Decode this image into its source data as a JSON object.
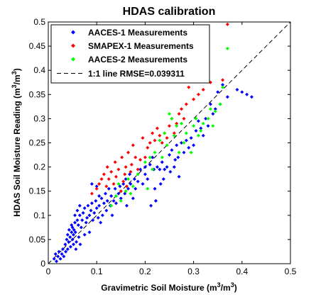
{
  "chart_data": {
    "type": "scatter",
    "title": "HDAS calibration",
    "xlabel": {
      "main": "Gravimetric Soil Moisture (m",
      "sup1": "3",
      "mid": "/m",
      "sup2": "3",
      "end": ")"
    },
    "ylabel": {
      "main": "HDAS Soil Moisture Reading (m",
      "sup1": "3",
      "mid": "/m",
      "sup2": "3",
      "end": ")"
    },
    "xlim": [
      0,
      0.5
    ],
    "ylim": [
      0,
      0.5
    ],
    "xticks": [
      "0",
      "0.1",
      "0.2",
      "0.3",
      "0.4",
      "0.5"
    ],
    "yticks": [
      "0",
      "0.05",
      "0.1",
      "0.15",
      "0.2",
      "0.25",
      "0.3",
      "0.35",
      "0.4",
      "0.45",
      "0.5"
    ],
    "grid": false,
    "legend_position": "top-left",
    "series": [
      {
        "name": "AACES-1 Measurements",
        "color": "#0000ff",
        "marker": "diamond",
        "points": [
          [
            0.012,
            0.01
          ],
          [
            0.015,
            0.02
          ],
          [
            0.017,
            0.005
          ],
          [
            0.02,
            0.015
          ],
          [
            0.022,
            0.025
          ],
          [
            0.025,
            0.01
          ],
          [
            0.028,
            0.02
          ],
          [
            0.03,
            0.03
          ],
          [
            0.032,
            0.015
          ],
          [
            0.035,
            0.04
          ],
          [
            0.036,
            0.025
          ],
          [
            0.038,
            0.05
          ],
          [
            0.04,
            0.03
          ],
          [
            0.04,
            0.06
          ],
          [
            0.042,
            0.045
          ],
          [
            0.043,
            0.07
          ],
          [
            0.045,
            0.055
          ],
          [
            0.046,
            0.035
          ],
          [
            0.048,
            0.065
          ],
          [
            0.048,
            0.08
          ],
          [
            0.05,
            0.05
          ],
          [
            0.05,
            0.075
          ],
          [
            0.052,
            0.04
          ],
          [
            0.052,
            0.06
          ],
          [
            0.053,
            0.07
          ],
          [
            0.055,
            0.085
          ],
          [
            0.055,
            0.1
          ],
          [
            0.056,
            0.065
          ],
          [
            0.057,
            0.03
          ],
          [
            0.058,
            0.045
          ],
          [
            0.06,
            0.09
          ],
          [
            0.06,
            0.11
          ],
          [
            0.062,
            0.08
          ],
          [
            0.063,
            0.055
          ],
          [
            0.065,
            0.1
          ],
          [
            0.065,
            0.12
          ],
          [
            0.066,
            0.04
          ],
          [
            0.068,
            0.075
          ],
          [
            0.07,
            0.09
          ],
          [
            0.072,
            0.105
          ],
          [
            0.075,
            0.115
          ],
          [
            0.075,
            0.06
          ],
          [
            0.078,
            0.085
          ],
          [
            0.08,
            0.095
          ],
          [
            0.082,
            0.12
          ],
          [
            0.085,
            0.1
          ],
          [
            0.085,
            0.065
          ],
          [
            0.088,
            0.11
          ],
          [
            0.09,
            0.125
          ],
          [
            0.09,
            0.165
          ],
          [
            0.092,
            0.09
          ],
          [
            0.095,
            0.105
          ],
          [
            0.098,
            0.13
          ],
          [
            0.1,
            0.115
          ],
          [
            0.1,
            0.16
          ],
          [
            0.103,
            0.095
          ],
          [
            0.105,
            0.12
          ],
          [
            0.105,
            0.14
          ],
          [
            0.108,
            0.085
          ],
          [
            0.11,
            0.135
          ],
          [
            0.112,
            0.1
          ],
          [
            0.115,
            0.125
          ],
          [
            0.118,
            0.145
          ],
          [
            0.12,
            0.11
          ],
          [
            0.122,
            0.13
          ],
          [
            0.125,
            0.155
          ],
          [
            0.128,
            0.12
          ],
          [
            0.13,
            0.14
          ],
          [
            0.132,
            0.1
          ],
          [
            0.135,
            0.13
          ],
          [
            0.138,
            0.155
          ],
          [
            0.14,
            0.125
          ],
          [
            0.145,
            0.145
          ],
          [
            0.148,
            0.16
          ],
          [
            0.15,
            0.135
          ],
          [
            0.155,
            0.165
          ],
          [
            0.158,
            0.145
          ],
          [
            0.16,
            0.175
          ],
          [
            0.162,
            0.12
          ],
          [
            0.165,
            0.155
          ],
          [
            0.168,
            0.185
          ],
          [
            0.17,
            0.165
          ],
          [
            0.175,
            0.135
          ],
          [
            0.178,
            0.175
          ],
          [
            0.18,
            0.155
          ],
          [
            0.185,
            0.17
          ],
          [
            0.19,
            0.195
          ],
          [
            0.195,
            0.165
          ],
          [
            0.2,
            0.2
          ],
          [
            0.2,
            0.185
          ],
          [
            0.205,
            0.175
          ],
          [
            0.21,
            0.205
          ],
          [
            0.212,
            0.12
          ],
          [
            0.215,
            0.22
          ],
          [
            0.218,
            0.195
          ],
          [
            0.22,
            0.155
          ],
          [
            0.222,
            0.13
          ],
          [
            0.225,
            0.2
          ],
          [
            0.23,
            0.195
          ],
          [
            0.232,
            0.165
          ],
          [
            0.235,
            0.21
          ],
          [
            0.238,
            0.175
          ],
          [
            0.24,
            0.195
          ],
          [
            0.245,
            0.2
          ],
          [
            0.25,
            0.225
          ],
          [
            0.252,
            0.19
          ],
          [
            0.255,
            0.235
          ],
          [
            0.26,
            0.2
          ],
          [
            0.262,
            0.215
          ],
          [
            0.265,
            0.245
          ],
          [
            0.268,
            0.22
          ],
          [
            0.27,
            0.18
          ],
          [
            0.275,
            0.25
          ],
          [
            0.28,
            0.23
          ],
          [
            0.285,
            0.255
          ],
          [
            0.29,
            0.24
          ],
          [
            0.295,
            0.26
          ],
          [
            0.3,
            0.245
          ],
          [
            0.305,
            0.275
          ],
          [
            0.31,
            0.295
          ],
          [
            0.315,
            0.28
          ],
          [
            0.32,
            0.265
          ],
          [
            0.325,
            0.3
          ],
          [
            0.33,
            0.285
          ],
          [
            0.335,
            0.33
          ],
          [
            0.34,
            0.31
          ],
          [
            0.345,
            0.32
          ],
          [
            0.35,
            0.355
          ],
          [
            0.355,
            0.33
          ],
          [
            0.36,
            0.37
          ],
          [
            0.37,
            0.345
          ],
          [
            0.39,
            0.36
          ],
          [
            0.4,
            0.355
          ],
          [
            0.41,
            0.35
          ],
          [
            0.42,
            0.345
          ]
        ]
      },
      {
        "name": "SMAPEX-1 Measurements",
        "color": "#ff0000",
        "marker": "diamond",
        "points": [
          [
            0.09,
            0.145
          ],
          [
            0.1,
            0.155
          ],
          [
            0.105,
            0.165
          ],
          [
            0.11,
            0.175
          ],
          [
            0.115,
            0.185
          ],
          [
            0.12,
            0.16
          ],
          [
            0.122,
            0.2
          ],
          [
            0.125,
            0.175
          ],
          [
            0.13,
            0.19
          ],
          [
            0.135,
            0.165
          ],
          [
            0.138,
            0.21
          ],
          [
            0.14,
            0.18
          ],
          [
            0.145,
            0.195
          ],
          [
            0.15,
            0.15
          ],
          [
            0.152,
            0.22
          ],
          [
            0.155,
            0.17
          ],
          [
            0.158,
            0.185
          ],
          [
            0.16,
            0.2
          ],
          [
            0.162,
            0.16
          ],
          [
            0.165,
            0.23
          ],
          [
            0.17,
            0.19
          ],
          [
            0.172,
            0.205
          ],
          [
            0.175,
            0.245
          ],
          [
            0.18,
            0.22
          ],
          [
            0.185,
            0.195
          ],
          [
            0.19,
            0.215
          ],
          [
            0.195,
            0.26
          ],
          [
            0.2,
            0.22
          ],
          [
            0.205,
            0.24
          ],
          [
            0.21,
            0.25
          ],
          [
            0.215,
            0.27
          ],
          [
            0.22,
            0.255
          ],
          [
            0.225,
            0.28
          ],
          [
            0.23,
            0.265
          ],
          [
            0.235,
            0.25
          ],
          [
            0.24,
            0.27
          ],
          [
            0.245,
            0.26
          ],
          [
            0.25,
            0.285
          ],
          [
            0.255,
            0.3
          ],
          [
            0.26,
            0.27
          ],
          [
            0.265,
            0.29
          ],
          [
            0.27,
            0.31
          ],
          [
            0.275,
            0.32
          ],
          [
            0.28,
            0.3
          ],
          [
            0.285,
            0.33
          ],
          [
            0.29,
            0.365
          ],
          [
            0.3,
            0.34
          ],
          [
            0.31,
            0.35
          ],
          [
            0.32,
            0.36
          ],
          [
            0.335,
            0.375
          ],
          [
            0.36,
            0.38
          ],
          [
            0.37,
            0.495
          ]
        ]
      },
      {
        "name": "AACES-2 Measurements",
        "color": "#00ff00",
        "marker": "diamond",
        "points": [
          [
            0.13,
            0.12
          ],
          [
            0.14,
            0.14
          ],
          [
            0.145,
            0.165
          ],
          [
            0.15,
            0.13
          ],
          [
            0.16,
            0.15
          ],
          [
            0.165,
            0.175
          ],
          [
            0.17,
            0.145
          ],
          [
            0.175,
            0.16
          ],
          [
            0.185,
            0.185
          ],
          [
            0.2,
            0.21
          ],
          [
            0.205,
            0.155
          ],
          [
            0.21,
            0.22
          ],
          [
            0.215,
            0.195
          ],
          [
            0.22,
            0.23
          ],
          [
            0.23,
            0.255
          ],
          [
            0.235,
            0.22
          ],
          [
            0.24,
            0.27
          ],
          [
            0.245,
            0.245
          ],
          [
            0.25,
            0.31
          ],
          [
            0.255,
            0.3
          ],
          [
            0.26,
            0.265
          ],
          [
            0.265,
            0.285
          ],
          [
            0.27,
            0.23
          ],
          [
            0.275,
            0.29
          ],
          [
            0.28,
            0.25
          ],
          [
            0.285,
            0.27
          ],
          [
            0.295,
            0.23
          ],
          [
            0.3,
            0.285
          ],
          [
            0.305,
            0.3
          ],
          [
            0.31,
            0.265
          ],
          [
            0.315,
            0.275
          ],
          [
            0.32,
            0.29
          ],
          [
            0.33,
            0.3
          ],
          [
            0.335,
            0.32
          ],
          [
            0.34,
            0.285
          ],
          [
            0.345,
            0.315
          ],
          [
            0.355,
            0.33
          ],
          [
            0.36,
            0.365
          ],
          [
            0.37,
            0.445
          ]
        ]
      }
    ],
    "reference_line": {
      "label": "1:1 line RMSE=0.039311",
      "style": "dashed",
      "color": "#000000",
      "from": [
        0,
        0
      ],
      "to": [
        0.5,
        0.5
      ]
    }
  }
}
